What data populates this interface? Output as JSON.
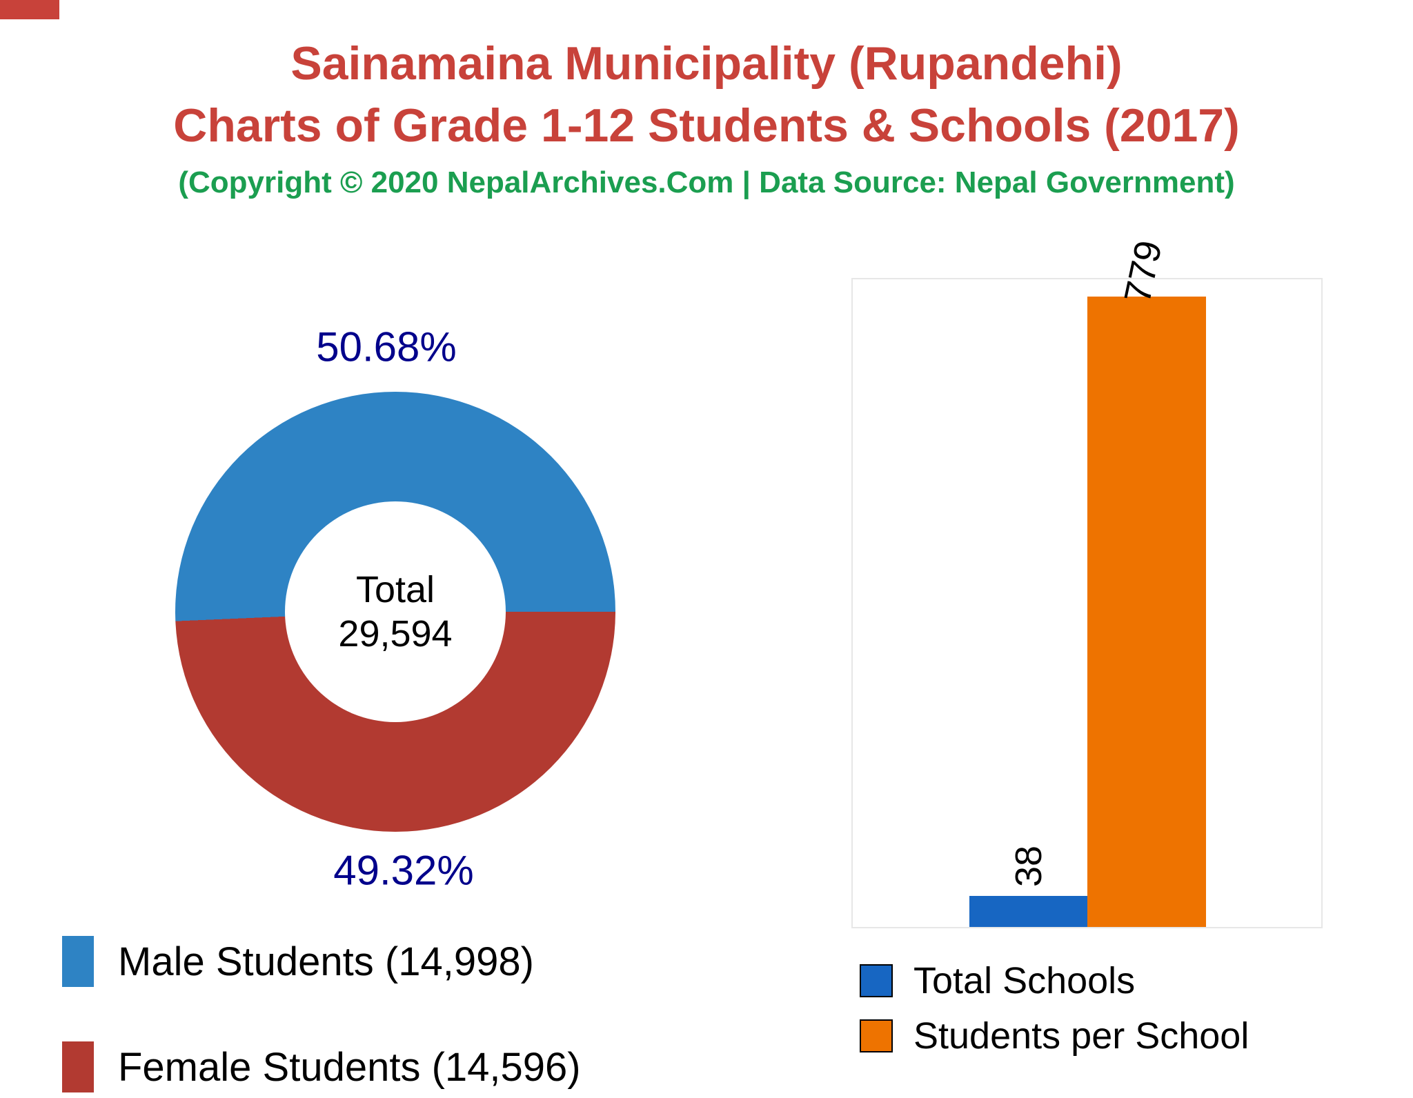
{
  "header": {
    "title_line1": "Sainamaina Municipality (Rupandehi)",
    "title_line2": "Charts of Grade 1-12 Students & Schools (2017)",
    "subtitle": "(Copyright © 2020 NepalArchives.Com | Data Source: Nepal Government)",
    "title_color": "#c8423a",
    "subtitle_color": "#1b9e50"
  },
  "chart_data": [
    {
      "type": "pie",
      "labels": [
        "Male Students",
        "Female Students"
      ],
      "values": [
        14998,
        14596
      ],
      "percent_labels": [
        "50.68%",
        "49.32%"
      ],
      "colors": [
        "#2e83c4",
        "#b23a31"
      ],
      "donut_hole": 0.5,
      "center_label": {
        "line1": "Total",
        "line2": "29,594"
      },
      "legend": [
        "Male Students (14,998)",
        "Female Students (14,596)"
      ],
      "percent_label_color": "#00008b",
      "legend_position": "bottom-left"
    },
    {
      "type": "bar",
      "categories": [
        "Total Schools",
        "Students per School"
      ],
      "values": [
        38,
        779
      ],
      "bar_labels": [
        "38",
        "779"
      ],
      "colors": [
        "#1766c2",
        "#ee7300"
      ],
      "ylim": [
        0,
        800
      ],
      "grid": false,
      "legend": [
        "Total Schools",
        "Students per School"
      ],
      "legend_position": "bottom"
    }
  ]
}
